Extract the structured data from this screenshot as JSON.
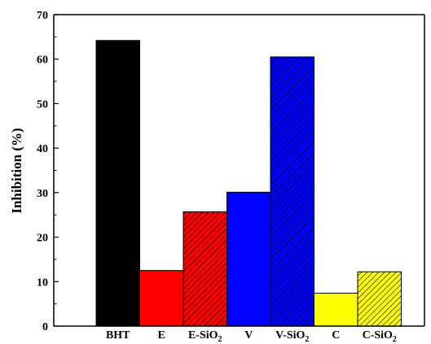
{
  "chart_data": {
    "type": "bar",
    "title": "",
    "xlabel": "",
    "ylabel": "Inhibition (%)",
    "ylim": [
      0,
      70
    ],
    "yticks": [
      0,
      10,
      20,
      30,
      40,
      50,
      60,
      70
    ],
    "grid": false,
    "legend": "none",
    "categories": [
      {
        "base": "BHT",
        "sub": ""
      },
      {
        "base": "E",
        "sub": ""
      },
      {
        "base": "E-SiO",
        "sub": "2"
      },
      {
        "base": "V",
        "sub": ""
      },
      {
        "base": "V-SiO",
        "sub": "2"
      },
      {
        "base": "C",
        "sub": ""
      },
      {
        "base": "C-SiO",
        "sub": "2"
      }
    ],
    "values": [
      64.2,
      12.5,
      25.7,
      30.1,
      60.5,
      7.4,
      12.2
    ],
    "colors": [
      "#000000",
      "#ff0000",
      "#ff0000",
      "#0000ff",
      "#0000ff",
      "#ffff00",
      "#ffff00"
    ],
    "hatched": [
      false,
      false,
      true,
      false,
      true,
      false,
      true
    ]
  }
}
